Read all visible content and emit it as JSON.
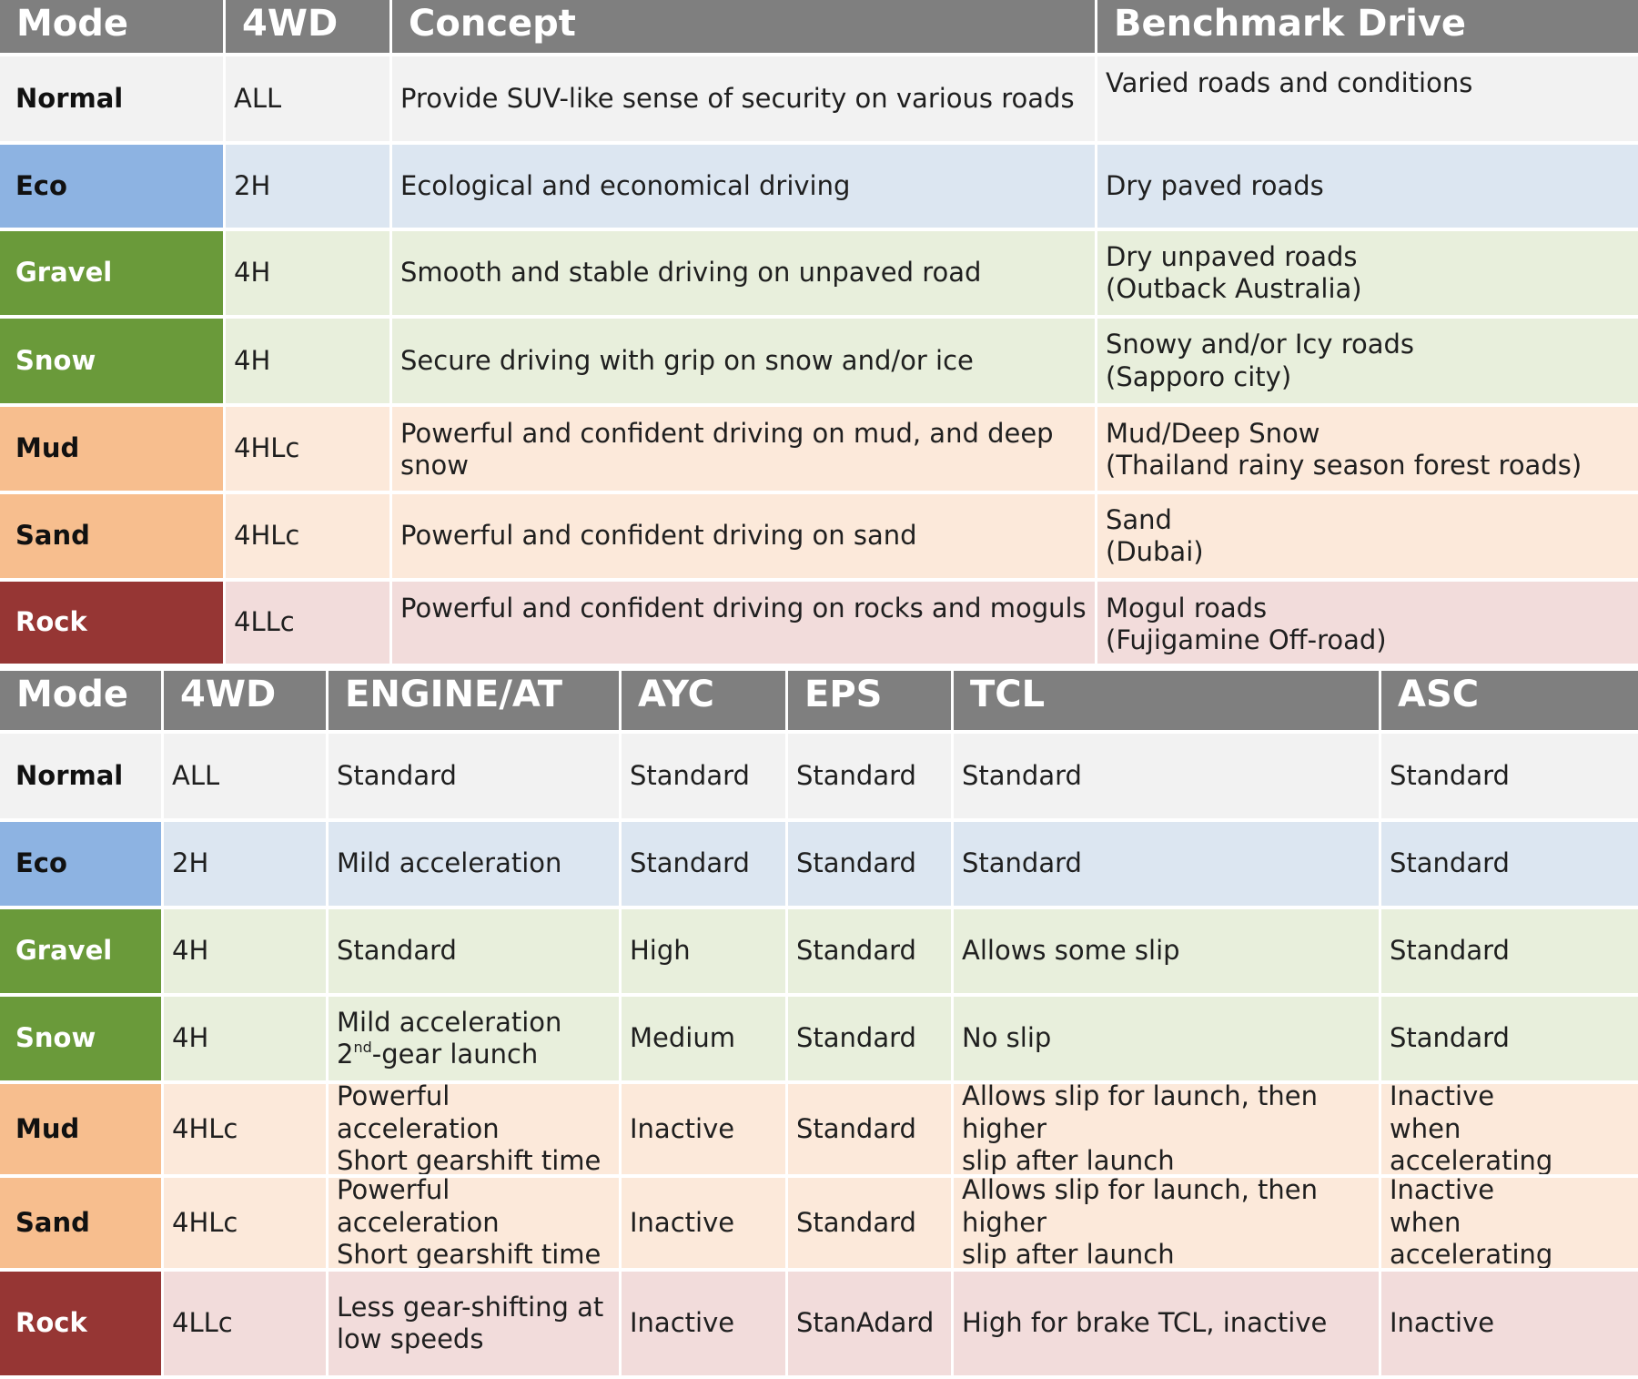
{
  "colors": {
    "header_bg": "#7f7f7f",
    "normal_mode": "#f2f2f2",
    "normal_row": "#f2f2f2",
    "eco_mode": "#8db3e2",
    "eco_row": "#dce6f1",
    "gravel_mode": "#6a9a3a",
    "gravel_row": "#e8efdc",
    "snow_mode": "#6a9a3a",
    "snow_row": "#e8efdc",
    "mud_mode": "#f7be8e",
    "mud_row": "#fce9da",
    "sand_mode": "#f7be8e",
    "sand_row": "#fce9da",
    "rock_mode": "#963634",
    "rock_row": "#f2dcdb"
  },
  "table1": {
    "headers": [
      "Mode",
      "4WD",
      "Concept",
      "Benchmark Drive"
    ],
    "rows": [
      {
        "key": "normal",
        "mode": "Normal",
        "drive": "ALL",
        "concept": "Provide SUV-like sense of security on various roads",
        "benchmark": [
          "Varied roads and conditions",
          ""
        ]
      },
      {
        "key": "eco",
        "mode": "Eco",
        "drive": "2H",
        "concept": "Ecological and economical driving",
        "benchmark": [
          "Dry paved roads",
          ""
        ]
      },
      {
        "key": "gravel",
        "mode": "Gravel",
        "drive": "4H",
        "concept": "Smooth and stable driving on unpaved road",
        "benchmark": [
          "Dry unpaved roads",
          "(Outback Australia)"
        ]
      },
      {
        "key": "snow",
        "mode": "Snow",
        "drive": "4H",
        "concept": "Secure driving with grip on snow and/or ice",
        "benchmark": [
          "Snowy and/or Icy roads",
          "(Sapporo city)"
        ]
      },
      {
        "key": "mud",
        "mode": "Mud",
        "drive": "4HLc",
        "concept": "Powerful and confident driving on mud, and deep snow",
        "benchmark": [
          "Mud/Deep Snow",
          "(Thailand rainy season forest roads)"
        ]
      },
      {
        "key": "sand",
        "mode": "Sand",
        "drive": "4HLc",
        "concept": "Powerful and confident driving on sand",
        "benchmark": [
          "Sand",
          "(Dubai)"
        ]
      },
      {
        "key": "rock",
        "mode": "Rock",
        "drive": "4LLc",
        "concept": "Powerful and confident driving on rocks and moguls",
        "benchmark": [
          "Mogul roads",
          "(Fujigamine Off-road)"
        ]
      }
    ]
  },
  "table2": {
    "headers": [
      "Mode",
      "4WD",
      "ENGINE/AT",
      "AYC",
      "EPS",
      "TCL",
      "ASC"
    ],
    "rows": [
      {
        "key": "normal",
        "mode": "Normal",
        "drive": "ALL",
        "engine": [
          "Standard",
          ""
        ],
        "ayc": "Standard",
        "eps": "Standard",
        "tcl": [
          "Standard",
          ""
        ],
        "asc": [
          "Standard",
          ""
        ]
      },
      {
        "key": "eco",
        "mode": "Eco",
        "drive": "2H",
        "engine": [
          "Mild acceleration",
          ""
        ],
        "ayc": "Standard",
        "eps": "Standard",
        "tcl": [
          "Standard",
          ""
        ],
        "asc": [
          "Standard",
          ""
        ]
      },
      {
        "key": "gravel",
        "mode": "Gravel",
        "drive": "4H",
        "engine": [
          "Standard",
          ""
        ],
        "ayc": "High",
        "eps": "Standard",
        "tcl": [
          "Allows some slip",
          ""
        ],
        "asc": [
          "Standard",
          ""
        ]
      },
      {
        "key": "snow",
        "mode": "Snow",
        "drive": "4H",
        "engine": [
          "Mild acceleration",
          "2",
          "nd",
          "-gear launch"
        ],
        "ayc": "Medium",
        "eps": "Standard",
        "tcl": [
          "No slip",
          ""
        ],
        "asc": [
          "Standard",
          ""
        ]
      },
      {
        "key": "mud",
        "mode": "Mud",
        "drive": "4HLc",
        "engine": [
          "Powerful acceleration",
          "Short gearshift time"
        ],
        "ayc": "Inactive",
        "eps": "Standard",
        "tcl": [
          "Allows slip for launch, then higher",
          "slip after launch"
        ],
        "asc": [
          "Inactive",
          "when accelerating"
        ]
      },
      {
        "key": "sand",
        "mode": "Sand",
        "drive": "4HLc",
        "engine": [
          "Powerful acceleration",
          "Short gearshift time"
        ],
        "ayc": "Inactive",
        "eps": "Standard",
        "tcl": [
          "Allows slip for launch, then higher",
          "slip after launch"
        ],
        "asc": [
          "Inactive",
          "when accelerating"
        ]
      },
      {
        "key": "rock",
        "mode": "Rock",
        "drive": "4LLc",
        "engine": [
          "Less gear-shifting at",
          "low speeds"
        ],
        "ayc": "Inactive",
        "eps": "StanAdard",
        "tcl": [
          "High for brake TCL, inactive",
          ""
        ],
        "asc": [
          "Inactive",
          ""
        ]
      }
    ]
  }
}
